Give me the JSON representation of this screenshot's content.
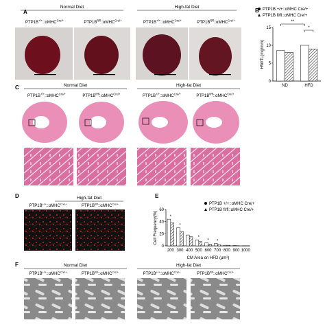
{
  "panels": {
    "genotypes": [
      {
        "gene": "PTP1B",
        "allele": "+/+",
        "link": "::αMHC",
        "cre": "Cre/+"
      },
      {
        "gene": "PTP1B",
        "allele": "fl/fl",
        "link": "::αMHC",
        "cre": "Cre/+"
      }
    ],
    "A": {
      "label": "A",
      "groups": [
        "Normal Diet",
        "High-fat Diet"
      ]
    },
    "B": {
      "label": "B"
    },
    "C": {
      "label": "C",
      "groups": [
        "Normal Diet",
        "High-fat Diet"
      ]
    },
    "D": {
      "label": "D",
      "groups": [
        "High-fat Diet"
      ]
    },
    "E": {
      "label": "E"
    },
    "F": {
      "label": "F",
      "groups": [
        "Normal Diet",
        "High-fat Diet"
      ]
    }
  },
  "chart_data": [
    {
      "type": "bar",
      "y_label": "HW/TL(mg/mm)",
      "categories": [
        "ND",
        "HFD"
      ],
      "series": [
        {
          "name": "PTP1B +/+::αMHC Cre/+",
          "color": "#ffffff",
          "values": [
            8.5,
            10
          ]
        },
        {
          "name": "PTP1B fl/fl::αMHC Cre/+",
          "color": "#555555",
          "values": [
            8,
            9
          ]
        }
      ],
      "ylim": [
        0,
        15
      ],
      "yticks": [
        0,
        5,
        10,
        15
      ],
      "annotations": [
        "**",
        "*"
      ]
    },
    {
      "type": "bar",
      "x_label": "CM Area on HFD (μm²)",
      "y_label": "Cell Frequency(%)",
      "categories": [
        "200",
        "300",
        "400",
        "500",
        "600",
        "700",
        "800",
        "900",
        "1000"
      ],
      "series": [
        {
          "name": "PTP1B +/+::αMHC Cre/+",
          "color": "#ffffff",
          "values": [
            44,
            30,
            18,
            10,
            5,
            4,
            1,
            0.5,
            0.2
          ]
        },
        {
          "name": "PTP1B fl/fl::αMHC Cre/+",
          "color": "#555555",
          "values": [
            38,
            24,
            15,
            7,
            3,
            2,
            1,
            0.3,
            0.1
          ]
        }
      ],
      "ylim": [
        0,
        60
      ],
      "yticks": [
        0,
        20,
        40,
        60
      ],
      "annotations": [
        "*",
        "*",
        "*",
        "*",
        "*"
      ]
    }
  ]
}
